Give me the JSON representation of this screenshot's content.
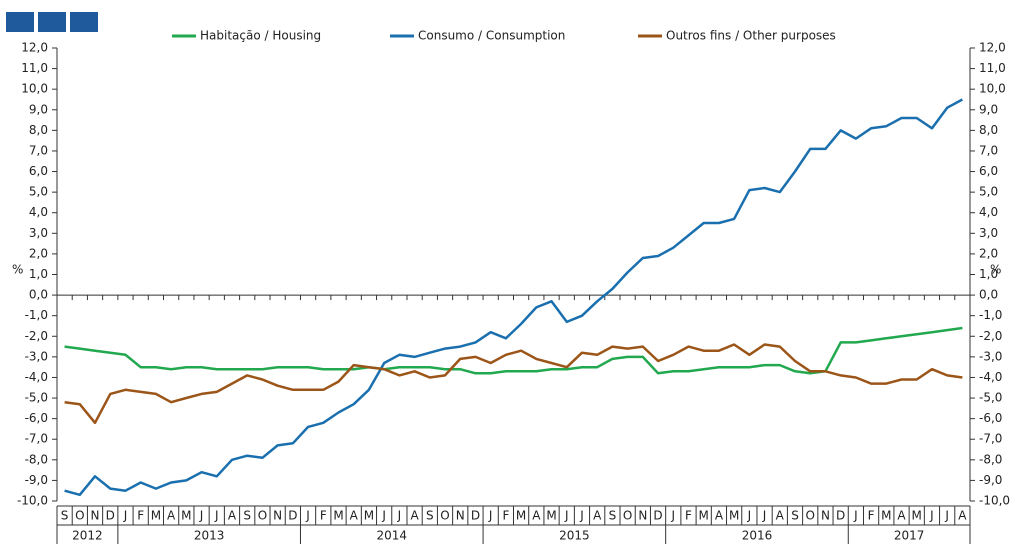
{
  "chart_data": {
    "type": "line",
    "y_label": "%",
    "y2_label": "%",
    "categories": [
      "S",
      "O",
      "N",
      "D",
      "J",
      "F",
      "M",
      "A",
      "M",
      "J",
      "J",
      "A",
      "S",
      "O",
      "N",
      "D",
      "J",
      "F",
      "M",
      "A",
      "M",
      "J",
      "J",
      "A",
      "S",
      "O",
      "N",
      "D",
      "J",
      "F",
      "M",
      "A",
      "M",
      "J",
      "J",
      "A",
      "S",
      "O",
      "N",
      "D",
      "J",
      "F",
      "M",
      "A",
      "M",
      "J",
      "J",
      "A",
      "S",
      "O",
      "N",
      "D",
      "J",
      "F",
      "M",
      "A",
      "M",
      "J",
      "J",
      "A"
    ],
    "years": [
      "2012",
      "2013",
      "2014",
      "2015",
      "2016",
      "2017"
    ],
    "ylim": [
      -10,
      12
    ],
    "y2lim": [
      -10,
      12
    ],
    "yticks": [
      {
        "value": 12,
        "label": "12,0"
      },
      {
        "value": 11,
        "label": "11,0"
      },
      {
        "value": 10,
        "label": "10,0"
      },
      {
        "value": 9,
        "label": "9,0"
      },
      {
        "value": 8,
        "label": "8,0"
      },
      {
        "value": 7,
        "label": "7,0"
      },
      {
        "value": 6,
        "label": "6,0"
      },
      {
        "value": 5,
        "label": "5,0"
      },
      {
        "value": 4,
        "label": "4,0"
      },
      {
        "value": 3,
        "label": "3,0"
      },
      {
        "value": 2,
        "label": "2,0"
      },
      {
        "value": 1,
        "label": "1,0"
      },
      {
        "value": 0,
        "label": "0,0"
      },
      {
        "value": -1,
        "label": "-1,0"
      },
      {
        "value": -2,
        "label": "-2,0"
      },
      {
        "value": -3,
        "label": "-3,0"
      },
      {
        "value": -4,
        "label": "-4,0"
      },
      {
        "value": -5,
        "label": "-5,0"
      },
      {
        "value": -6,
        "label": "-6,0"
      },
      {
        "value": -7,
        "label": "-7,0"
      },
      {
        "value": -8,
        "label": "-8,0"
      },
      {
        "value": -9,
        "label": "-9,0"
      },
      {
        "value": -10,
        "label": "-10,0"
      }
    ],
    "series": [
      {
        "name": "Habitação / Housing",
        "color": "#22a84e",
        "values": [
          -2.5,
          -2.6,
          -2.7,
          -2.8,
          -2.9,
          -3.5,
          -3.5,
          -3.6,
          -3.5,
          -3.5,
          -3.6,
          -3.6,
          -3.6,
          -3.6,
          -3.5,
          -3.5,
          -3.5,
          -3.6,
          -3.6,
          -3.6,
          -3.5,
          -3.6,
          -3.5,
          -3.5,
          -3.5,
          -3.6,
          -3.6,
          -3.8,
          -3.8,
          -3.7,
          -3.7,
          -3.7,
          -3.6,
          -3.6,
          -3.5,
          -3.5,
          -3.1,
          -3.0,
          -3.0,
          -3.8,
          -3.7,
          -3.7,
          -3.6,
          -3.5,
          -3.5,
          -3.5,
          -3.4,
          -3.4,
          -3.7,
          -3.8,
          -3.7,
          -2.3,
          -2.3,
          -2.2,
          -2.1,
          -2.0,
          -1.9,
          -1.8,
          -1.7,
          -1.6
        ]
      },
      {
        "name": "Consumo / Consumption",
        "color": "#1a6faf",
        "values": [
          -9.5,
          -9.7,
          -8.8,
          -9.4,
          -9.5,
          -9.1,
          -9.4,
          -9.1,
          -9.0,
          -8.6,
          -8.8,
          -8.0,
          -7.8,
          -7.9,
          -7.3,
          -7.2,
          -6.4,
          -6.2,
          -5.7,
          -5.3,
          -4.6,
          -3.3,
          -2.9,
          -3.0,
          -2.8,
          -2.6,
          -2.5,
          -2.3,
          -1.8,
          -2.1,
          -1.4,
          -0.6,
          -0.3,
          -1.3,
          -1.0,
          -0.3,
          0.3,
          1.1,
          1.8,
          1.9,
          2.3,
          2.9,
          3.5,
          3.5,
          3.7,
          5.1,
          5.2,
          5.0,
          6.0,
          7.1,
          7.1,
          8.0,
          7.6,
          8.1,
          8.2,
          8.6,
          8.6,
          8.1,
          9.1,
          9.5
        ]
      },
      {
        "name": "Outros fins / Other purposes",
        "color": "#9c5518",
        "values": [
          -5.2,
          -5.3,
          -6.2,
          -4.8,
          -4.6,
          -4.7,
          -4.8,
          -5.2,
          -5.0,
          -4.8,
          -4.7,
          -4.3,
          -3.9,
          -4.1,
          -4.4,
          -4.6,
          -4.6,
          -4.6,
          -4.2,
          -3.4,
          -3.5,
          -3.6,
          -3.9,
          -3.7,
          -4.0,
          -3.9,
          -3.1,
          -3.0,
          -3.3,
          -2.9,
          -2.7,
          -3.1,
          -3.3,
          -3.5,
          -2.8,
          -2.9,
          -2.5,
          -2.6,
          -2.5,
          -3.2,
          -2.9,
          -2.5,
          -2.7,
          -2.7,
          -2.4,
          -2.9,
          -2.4,
          -2.5,
          -3.2,
          -3.7,
          -3.7,
          -3.9,
          -4.0,
          -4.3,
          -4.3,
          -4.1,
          -4.1,
          -3.6,
          -3.9,
          -4.0
        ]
      }
    ]
  }
}
